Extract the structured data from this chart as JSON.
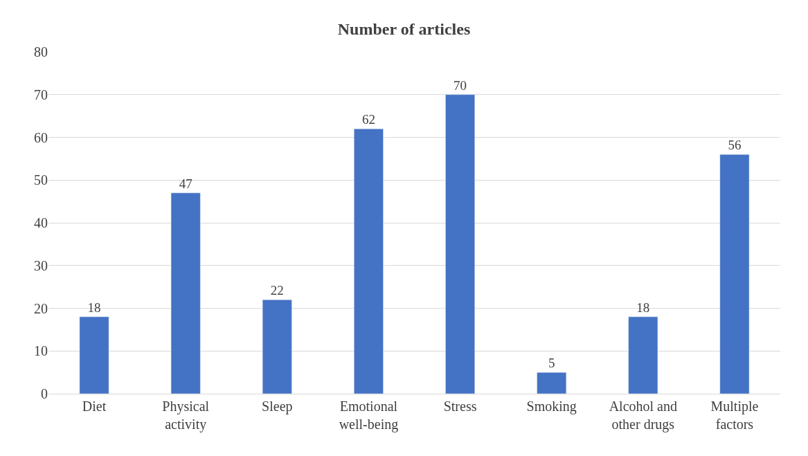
{
  "chart_data": {
    "type": "bar",
    "title": "Number of articles",
    "categories": [
      "Diet",
      "Physical activity",
      "Sleep",
      "Emotional well-being",
      "Stress",
      "Smoking",
      "Alcohol and other drugs",
      "Multiple factors"
    ],
    "values": [
      18,
      47,
      22,
      62,
      70,
      5,
      18,
      56
    ],
    "color": "#4472c4",
    "ylim": [
      0,
      80
    ],
    "yticks": [
      0,
      10,
      20,
      30,
      40,
      50,
      60,
      70,
      80
    ],
    "grid": "y",
    "data_labels": true
  }
}
